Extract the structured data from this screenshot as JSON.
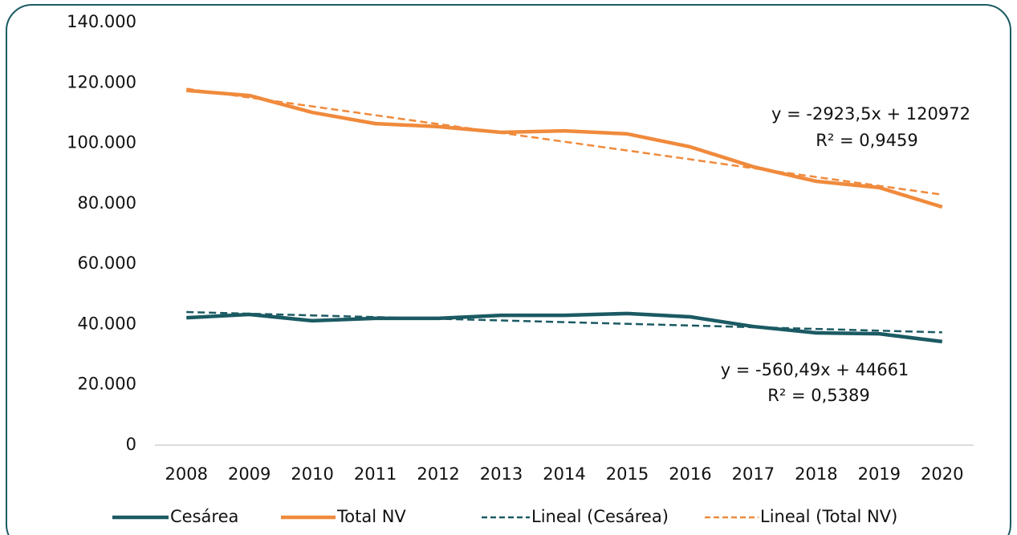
{
  "chart_data": {
    "type": "line",
    "categories": [
      "2008",
      "2009",
      "2010",
      "2011",
      "2012",
      "2013",
      "2014",
      "2015",
      "2016",
      "2017",
      "2018",
      "2019",
      "2020"
    ],
    "series": [
      {
        "name": "Cesárea",
        "color": "#1b5a63",
        "style": "solid",
        "values": [
          42200,
          43300,
          41200,
          42000,
          42000,
          43000,
          43000,
          43600,
          42500,
          39300,
          37200,
          36900,
          34300
        ]
      },
      {
        "name": "Total NV",
        "color": "#f08a3c",
        "style": "solid",
        "values": [
          117500,
          115800,
          110200,
          106500,
          105500,
          103600,
          104100,
          103100,
          98800,
          92200,
          87400,
          85300,
          78900
        ]
      },
      {
        "name": "Lineal (Cesárea)",
        "color": "#1b5a63",
        "style": "dashed",
        "values": [
          44100,
          43540,
          42980,
          42419,
          41859,
          41298,
          40738,
          40177,
          39617,
          39056,
          38496,
          37935,
          37375
        ]
      },
      {
        "name": "Lineal (Total NV)",
        "color": "#f08a3c",
        "style": "dashed",
        "values": [
          118049,
          115125,
          112202,
          109278,
          106355,
          103431,
          100508,
          97584,
          94661,
          91737,
          88814,
          85890,
          82967
        ]
      }
    ],
    "annotations": [
      {
        "equation": "y = -2923,5x + 120972",
        "r_squared": "R² = 0,9459"
      },
      {
        "equation": "y = -560,49x + 44661",
        "r_squared": "R² = 0,5389"
      }
    ],
    "ylim": [
      0,
      140000
    ],
    "yticks": [
      0,
      {
        "value": 20000,
        "label": "20.000"
      },
      {
        "value": 40000,
        "label": "40.000"
      },
      {
        "value": 60000,
        "label": "60.000"
      },
      {
        "value": 80000,
        "label": "80.000"
      },
      {
        "value": 100000,
        "label": "100.000"
      },
      {
        "value": 120000,
        "label": "120.000"
      },
      {
        "value": 140000,
        "label": "140.000"
      }
    ],
    "grid": false,
    "legend": "bottom"
  }
}
